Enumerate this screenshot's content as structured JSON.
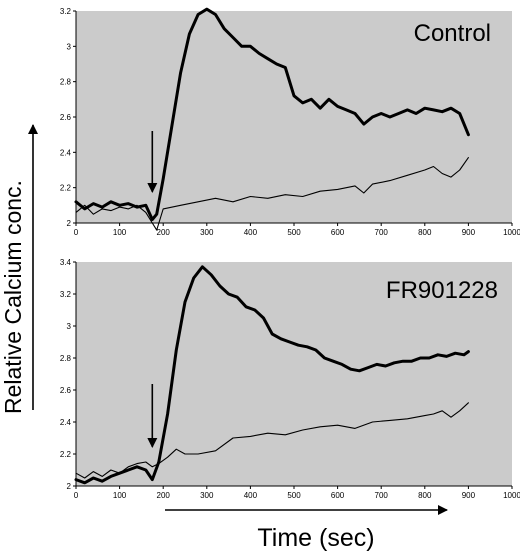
{
  "figure": {
    "y_axis_label": "Relative Calcium conc.",
    "x_axis_label": "Time (sec)"
  },
  "colors": {
    "plot_background": "#cbcbcb",
    "line": "#000000",
    "page_background": "#ffffff"
  },
  "chart_data": [
    {
      "type": "line",
      "panel_label": "Control",
      "xlim": [
        0,
        1000
      ],
      "ylim": [
        2,
        3.2
      ],
      "x_ticks": [
        "0",
        "100",
        "200",
        "300",
        "400",
        "500",
        "600",
        "700",
        "800",
        "900",
        "1000"
      ],
      "y_ticks": [
        "2",
        "2.2",
        "2.4",
        "2.6",
        "2.8",
        "3",
        "3.2"
      ],
      "grid": false,
      "stimulus_arrow_x": 175,
      "series": [
        {
          "style": "thick",
          "x": [
            0,
            20,
            40,
            60,
            80,
            100,
            120,
            140,
            160,
            175,
            185,
            200,
            220,
            240,
            260,
            280,
            300,
            320,
            340,
            360,
            380,
            400,
            420,
            440,
            460,
            480,
            500,
            520,
            540,
            560,
            580,
            600,
            620,
            640,
            660,
            680,
            700,
            720,
            740,
            760,
            780,
            800,
            820,
            840,
            860,
            880,
            900
          ],
          "y": [
            2.12,
            2.08,
            2.11,
            2.09,
            2.12,
            2.1,
            2.11,
            2.09,
            2.1,
            2.02,
            2.05,
            2.25,
            2.55,
            2.85,
            3.07,
            3.18,
            3.21,
            3.18,
            3.1,
            3.05,
            3.0,
            3.0,
            2.96,
            2.93,
            2.9,
            2.88,
            2.72,
            2.68,
            2.7,
            2.65,
            2.7,
            2.66,
            2.64,
            2.62,
            2.56,
            2.6,
            2.62,
            2.6,
            2.62,
            2.64,
            2.62,
            2.65,
            2.64,
            2.63,
            2.65,
            2.62,
            2.5
          ]
        },
        {
          "style": "thin",
          "x": [
            0,
            20,
            40,
            60,
            80,
            100,
            120,
            140,
            160,
            175,
            185,
            200,
            240,
            280,
            320,
            360,
            400,
            440,
            480,
            520,
            560,
            600,
            640,
            660,
            680,
            720,
            760,
            800,
            820,
            840,
            860,
            880,
            900
          ],
          "y": [
            2.06,
            2.1,
            2.05,
            2.08,
            2.07,
            2.09,
            2.08,
            2.1,
            2.06,
            2.0,
            1.96,
            2.08,
            2.1,
            2.12,
            2.14,
            2.12,
            2.15,
            2.14,
            2.16,
            2.15,
            2.18,
            2.19,
            2.21,
            2.17,
            2.22,
            2.24,
            2.27,
            2.3,
            2.32,
            2.28,
            2.26,
            2.3,
            2.37
          ]
        }
      ]
    },
    {
      "type": "line",
      "panel_label": "FR901228",
      "xlim": [
        0,
        1000
      ],
      "ylim": [
        2,
        3.4
      ],
      "x_ticks": [
        "0",
        "100",
        "200",
        "300",
        "400",
        "500",
        "600",
        "700",
        "800",
        "900",
        "1000"
      ],
      "y_ticks": [
        "2",
        "2.2",
        "2.4",
        "2.6",
        "2.8",
        "3",
        "3.2",
        "3.4"
      ],
      "grid": false,
      "stimulus_arrow_x": 175,
      "series": [
        {
          "style": "thick",
          "x": [
            0,
            20,
            40,
            60,
            80,
            100,
            120,
            140,
            160,
            175,
            190,
            210,
            230,
            250,
            270,
            290,
            310,
            330,
            350,
            370,
            390,
            410,
            430,
            450,
            470,
            490,
            510,
            530,
            550,
            570,
            590,
            610,
            630,
            650,
            670,
            690,
            710,
            730,
            750,
            770,
            790,
            810,
            830,
            850,
            870,
            890,
            900
          ],
          "y": [
            2.04,
            2.02,
            2.05,
            2.03,
            2.06,
            2.08,
            2.1,
            2.12,
            2.1,
            2.04,
            2.15,
            2.45,
            2.85,
            3.15,
            3.3,
            3.37,
            3.32,
            3.25,
            3.2,
            3.18,
            3.12,
            3.1,
            3.05,
            2.95,
            2.92,
            2.9,
            2.88,
            2.87,
            2.85,
            2.8,
            2.78,
            2.76,
            2.73,
            2.72,
            2.74,
            2.76,
            2.75,
            2.77,
            2.78,
            2.78,
            2.8,
            2.8,
            2.82,
            2.81,
            2.83,
            2.82,
            2.84
          ]
        },
        {
          "style": "thin",
          "x": [
            0,
            20,
            40,
            60,
            80,
            100,
            120,
            140,
            160,
            175,
            190,
            210,
            230,
            250,
            280,
            320,
            360,
            400,
            440,
            480,
            520,
            560,
            600,
            640,
            680,
            720,
            760,
            800,
            820,
            840,
            860,
            880,
            900
          ],
          "y": [
            2.08,
            2.05,
            2.09,
            2.06,
            2.1,
            2.08,
            2.12,
            2.14,
            2.15,
            2.12,
            2.14,
            2.18,
            2.23,
            2.2,
            2.2,
            2.22,
            2.3,
            2.31,
            2.33,
            2.32,
            2.35,
            2.37,
            2.38,
            2.36,
            2.4,
            2.41,
            2.42,
            2.44,
            2.45,
            2.47,
            2.43,
            2.47,
            2.52
          ]
        }
      ]
    }
  ]
}
